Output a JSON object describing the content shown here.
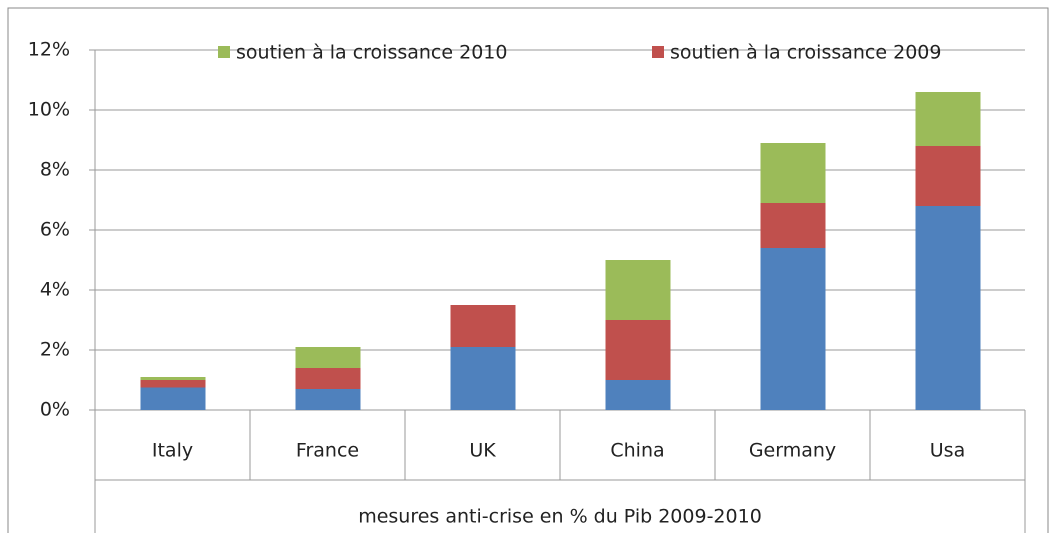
{
  "chart_data": {
    "type": "bar",
    "stacked": true,
    "x_label": "mesures anti-crise en % du Pib 2009-2010",
    "categories": [
      "Italy",
      "France",
      "UK",
      "China",
      "Germany",
      "Usa"
    ],
    "series": [
      {
        "color": "#4f81bd",
        "values": [
          0.75,
          0.7,
          2.1,
          1.0,
          5.4,
          6.8
        ]
      },
      {
        "name": "soutien à la croissance 2009",
        "color": "#c0504d",
        "values": [
          0.25,
          0.7,
          1.4,
          2.0,
          1.5,
          2.0
        ]
      },
      {
        "name": "soutien à la croissance 2010",
        "color": "#9bbb59",
        "values": [
          0.1,
          0.7,
          0,
          2.0,
          2.0,
          1.8
        ]
      }
    ],
    "ylim": [
      0,
      12
    ],
    "yticks": [
      {
        "value": 0,
        "label": "0%"
      },
      {
        "value": 2,
        "label": "2%"
      },
      {
        "value": 4,
        "label": "4%"
      },
      {
        "value": 6,
        "label": "6%"
      },
      {
        "value": 8,
        "label": "8%"
      },
      {
        "value": 10,
        "label": "10%"
      },
      {
        "value": 12,
        "label": "12%"
      }
    ],
    "grid": true
  }
}
